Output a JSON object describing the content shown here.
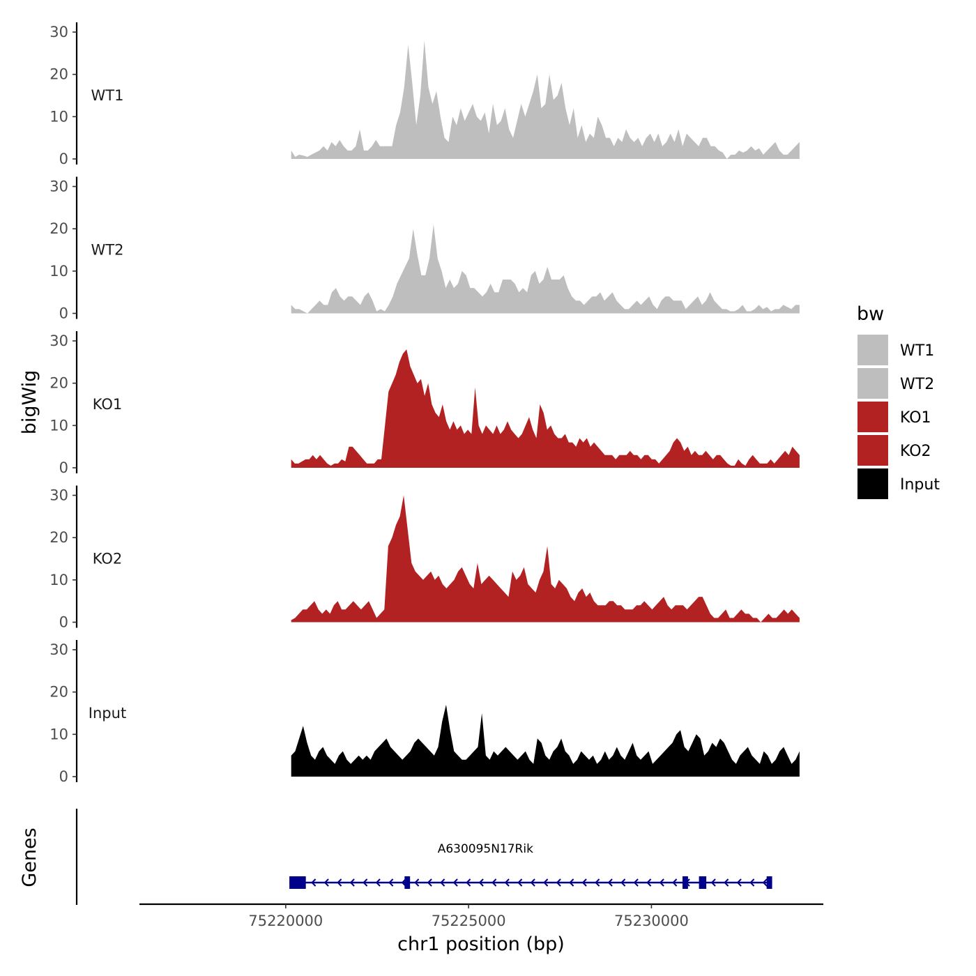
{
  "chart_data": {
    "type": "area",
    "ylabel": "bigWig",
    "xlabel": "chr1 position (bp)",
    "xlim": [
      75216000,
      75234700
    ],
    "ylim": [
      0,
      30
    ],
    "yticks": [
      0,
      10,
      20,
      30
    ],
    "xticks": [
      75220000,
      75225000,
      75230000
    ],
    "data_range": [
      75220150,
      75234050
    ],
    "legend": {
      "title": "bw",
      "position": "right",
      "entries": [
        {
          "label": "WT1",
          "color": "#bebebe"
        },
        {
          "label": "WT2",
          "color": "#bebebe"
        },
        {
          "label": "KO1",
          "color": "#b22222"
        },
        {
          "label": "KO2",
          "color": "#b22222"
        },
        {
          "label": "Input",
          "color": "#000000"
        }
      ]
    },
    "tracks": [
      {
        "name": "WT1",
        "color": "#bebebe",
        "values": [
          2,
          0.5,
          1,
          0.8,
          0.5,
          1,
          1.5,
          2,
          3,
          2,
          4,
          3,
          4.5,
          3,
          2,
          2,
          3,
          7,
          2,
          2,
          3,
          4.5,
          3,
          3,
          3,
          3,
          8,
          11,
          17,
          27,
          18,
          8,
          15,
          28,
          17,
          13,
          16,
          10,
          5,
          4,
          10,
          8,
          12,
          9,
          11,
          13,
          10,
          9,
          11,
          6,
          13,
          8,
          9,
          12,
          7,
          5,
          9,
          13,
          10,
          13,
          16,
          20,
          12,
          13,
          20,
          14,
          15,
          18,
          12,
          8,
          12,
          5,
          8,
          4,
          6,
          5,
          10,
          8,
          5,
          5,
          3,
          5,
          4,
          7,
          5,
          4,
          5,
          3,
          5,
          6,
          4,
          6,
          3,
          4,
          6,
          4,
          7,
          3,
          6,
          5,
          4,
          3,
          5,
          5,
          3,
          3,
          2,
          1.5,
          0,
          1,
          1,
          2,
          1.5,
          2,
          3,
          2,
          2.5,
          1,
          2,
          3,
          4,
          2,
          1,
          1,
          2,
          3,
          4
        ]
      },
      {
        "name": "WT2",
        "color": "#bebebe",
        "values": [
          2,
          1,
          1,
          0.5,
          0,
          1,
          2,
          3,
          2,
          2,
          5,
          6,
          4,
          3,
          4,
          4,
          3,
          2,
          4,
          5,
          3,
          0.5,
          1,
          0.5,
          2,
          4,
          7,
          9,
          11,
          13,
          20,
          14,
          9,
          9,
          13,
          21,
          13,
          10,
          6,
          8,
          6,
          7,
          10,
          9,
          6,
          6,
          5,
          4,
          5,
          7,
          5,
          5,
          8,
          8,
          8,
          7,
          5,
          6,
          5,
          9,
          10,
          7,
          8,
          11,
          8,
          8,
          8,
          9,
          6,
          4,
          3,
          3,
          2,
          3,
          4,
          4,
          5,
          3,
          4,
          5,
          3,
          2,
          1,
          1,
          2,
          3,
          2,
          3,
          4,
          2,
          1,
          3,
          4,
          4,
          3,
          3,
          3,
          1,
          2,
          3,
          4,
          2,
          3,
          5,
          3,
          2,
          1,
          1,
          0.5,
          0.5,
          1,
          2,
          0.5,
          0.5,
          1,
          2,
          1,
          1.5,
          0.5,
          1,
          1,
          2,
          1.5,
          1,
          2,
          2
        ]
      },
      {
        "name": "KO1",
        "color": "#b22222",
        "values": [
          2,
          1,
          1,
          1.5,
          2,
          2,
          3,
          2,
          3,
          2,
          1,
          0.5,
          1,
          1,
          2,
          1.5,
          5,
          5,
          4,
          3,
          2,
          1,
          1,
          1,
          2,
          2,
          10,
          18,
          20,
          22,
          25,
          27,
          28,
          24,
          22,
          20,
          21,
          17,
          20,
          15,
          13,
          12,
          15,
          11,
          9,
          11,
          9,
          10,
          8,
          9,
          8,
          19,
          10,
          8,
          10,
          9,
          8,
          10,
          8,
          9,
          11,
          9,
          8,
          7,
          8,
          10,
          12,
          9,
          7,
          15,
          13,
          9,
          10,
          8,
          7,
          7,
          8,
          6,
          6,
          5,
          7,
          6,
          7,
          5,
          6,
          5,
          4,
          3,
          3,
          3,
          2,
          3,
          3,
          3,
          4,
          3,
          3,
          2,
          3,
          3,
          2,
          2,
          1,
          2,
          3,
          4,
          6,
          7,
          6,
          4,
          5,
          3,
          4,
          3,
          3,
          4,
          3,
          2,
          3,
          3,
          2,
          1,
          0.5,
          0.5,
          2,
          1,
          0.5,
          2,
          3,
          2,
          1,
          1,
          1,
          2,
          1,
          2,
          3,
          4,
          3,
          5,
          4,
          3
        ]
      },
      {
        "name": "KO2",
        "color": "#b22222",
        "values": [
          0.5,
          1,
          2,
          3,
          3,
          4,
          5,
          3,
          2,
          3,
          2,
          4,
          5,
          3,
          3,
          4,
          5,
          4,
          3,
          4,
          5,
          3,
          1,
          2,
          3,
          18,
          20,
          23,
          25,
          30,
          22,
          14,
          12,
          11,
          10,
          11,
          12,
          10,
          11,
          9,
          8,
          9,
          10,
          12,
          13,
          11,
          9,
          8,
          14,
          9,
          10,
          11,
          10,
          9,
          8,
          7,
          6,
          12,
          10,
          11,
          13,
          9,
          8,
          7,
          10,
          12,
          18,
          9,
          8,
          10,
          9,
          8,
          6,
          5,
          7,
          8,
          6,
          7,
          5,
          4,
          4,
          4,
          5,
          5,
          4,
          4,
          3,
          3,
          3,
          4,
          4,
          5,
          4,
          3,
          4,
          5,
          6,
          4,
          3,
          4,
          4,
          4,
          3,
          4,
          5,
          6,
          6,
          4,
          2,
          1,
          1,
          2,
          3,
          1,
          1,
          2,
          3,
          2,
          2,
          1,
          1,
          0,
          1,
          2,
          1,
          1,
          2,
          3,
          2,
          3,
          2,
          1
        ]
      },
      {
        "name": "Input",
        "color": "#000000",
        "values": [
          5,
          6,
          9,
          12,
          8,
          5,
          4,
          6,
          7,
          5,
          4,
          3,
          5,
          6,
          4,
          3,
          4,
          5,
          4,
          5,
          4,
          6,
          7,
          8,
          9,
          7,
          6,
          5,
          4,
          5,
          6,
          8,
          9,
          8,
          7,
          6,
          5,
          7,
          13,
          17,
          11,
          6,
          5,
          4,
          4,
          5,
          6,
          7,
          15,
          5,
          4,
          6,
          5,
          6,
          7,
          6,
          5,
          4,
          5,
          6,
          4,
          3,
          9,
          8,
          5,
          4,
          6,
          7,
          9,
          6,
          5,
          3,
          4,
          6,
          5,
          4,
          5,
          3,
          4,
          6,
          4,
          5,
          7,
          5,
          4,
          6,
          8,
          5,
          4,
          5,
          6,
          3,
          4,
          5,
          6,
          7,
          8,
          10,
          11,
          7,
          6,
          8,
          10,
          9,
          5,
          6,
          8,
          7,
          9,
          8,
          6,
          4,
          3,
          5,
          6,
          7,
          5,
          4,
          3,
          6,
          5,
          3,
          4,
          6,
          7,
          5,
          3,
          4,
          6
        ]
      }
    ],
    "genes": [
      {
        "name": "A630095N17Rik",
        "strand": "-",
        "start": 75220100,
        "end": 75233300,
        "exons": [
          [
            75220100,
            75220550
          ],
          [
            75223250,
            75223400
          ],
          [
            75230850,
            75231000
          ],
          [
            75231300,
            75231500
          ],
          [
            75233150,
            75233300
          ]
        ]
      }
    ],
    "genes_label": "Genes"
  }
}
